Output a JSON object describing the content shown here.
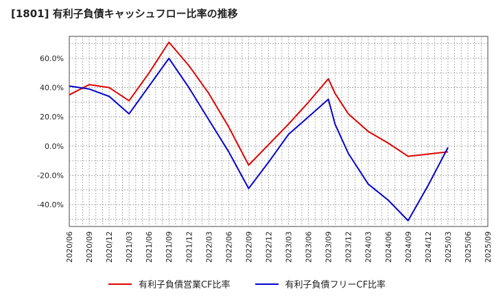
{
  "title": "[1801]  有利子負債キャッシュフロー比率の推移",
  "chart_data": {
    "type": "line",
    "title": "[1801]  有利子負債キャッシュフロー比率の推移",
    "xlabel": "",
    "ylabel": "",
    "x_ticks": [
      "2020/06",
      "2020/09",
      "2020/12",
      "2021/03",
      "2021/06",
      "2021/09",
      "2021/12",
      "2022/03",
      "2022/06",
      "2022/09",
      "2022/12",
      "2023/03",
      "2023/06",
      "2023/09",
      "2023/12",
      "2024/03",
      "2024/06",
      "2024/09",
      "2024/12",
      "2025/03",
      "2025/06",
      "2025/09"
    ],
    "y_ticks": [
      -40,
      -20,
      0,
      20,
      40,
      60
    ],
    "y_tick_labels": [
      "-40.0%",
      "-20.0%",
      "0.0%",
      "20.0%",
      "40.0%",
      "60.0%"
    ],
    "ylim": [
      -55,
      75
    ],
    "grid": true,
    "legend_position": "bottom",
    "series": [
      {
        "name": "有利子負債営業CF比率",
        "color": "#dd0000",
        "x": [
          "2020/06",
          "2020/09",
          "2020/12",
          "2021/03",
          "2021/06",
          "2021/09",
          "2021/12",
          "2022/03",
          "2022/06",
          "2022/09",
          "2022/12",
          "2023/03",
          "2023/06",
          "2023/09",
          "2023/10",
          "2023/12",
          "2024/03",
          "2024/06",
          "2024/09",
          "2024/12",
          "2025/03"
        ],
        "values": [
          35,
          42,
          40,
          31,
          50,
          71,
          55,
          36,
          13,
          -13,
          1,
          15,
          30,
          46,
          36,
          22,
          10,
          2,
          -7,
          -5.5,
          -4
        ]
      },
      {
        "name": "有利子負債フリーCF比率",
        "color": "#0000cc",
        "x": [
          "2020/06",
          "2020/09",
          "2020/12",
          "2021/03",
          "2021/06",
          "2021/09",
          "2021/12",
          "2022/03",
          "2022/06",
          "2022/09",
          "2022/12",
          "2023/03",
          "2023/06",
          "2023/09",
          "2023/10",
          "2023/11",
          "2023/12",
          "2024/03",
          "2024/06",
          "2024/09",
          "2024/12",
          "2025/03"
        ],
        "values": [
          41,
          39,
          34,
          22,
          41,
          60,
          40,
          18,
          -4,
          -29,
          -11,
          8,
          20,
          32,
          15,
          5,
          -5,
          -26,
          -37,
          -51,
          -27,
          -1
        ]
      }
    ]
  }
}
